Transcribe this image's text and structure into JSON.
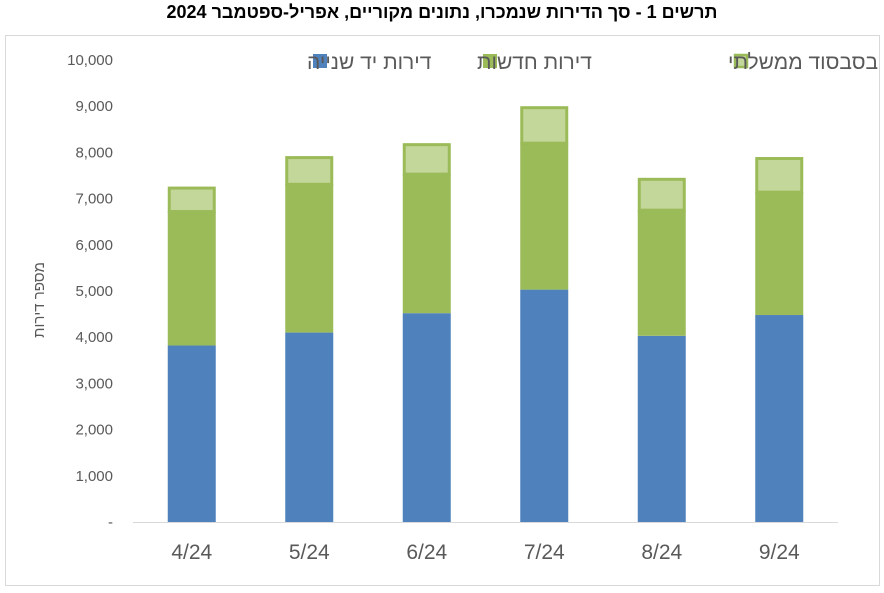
{
  "chart_data": {
    "type": "bar",
    "stacked": true,
    "title": "תרשים 1 - סך הדירות שנמכרו, נתונים מקוריים, אפריל-ספטמבר 2024",
    "categories": [
      "4/24",
      "5/24",
      "6/24",
      "7/24",
      "8/24",
      "9/24"
    ],
    "series": [
      {
        "name": "דירות יד שנייה",
        "color": "#4f81bd",
        "values": [
          3820,
          4100,
          4520,
          5030,
          4030,
          4480
        ]
      },
      {
        "name": "דירות חדשות",
        "color": "#9bbb59",
        "values": [
          2900,
          3210,
          3010,
          3170,
          2720,
          2660
        ]
      },
      {
        "name": "דירות בסבסוד ממשלתי",
        "color": "#c4d79b",
        "border": "#9bbb59",
        "values": [
          540,
          610,
          670,
          800,
          700,
          760
        ]
      }
    ],
    "xlabel": "",
    "ylabel": "מספר דירות",
    "ylim": [
      0,
      10000
    ],
    "yticks": [
      "-",
      "1,000",
      "2,000",
      "3,000",
      "4,000",
      "5,000",
      "6,000",
      "7,000",
      "8,000",
      "9,000",
      "10,000"
    ],
    "grid": false,
    "legend_position": "top"
  }
}
